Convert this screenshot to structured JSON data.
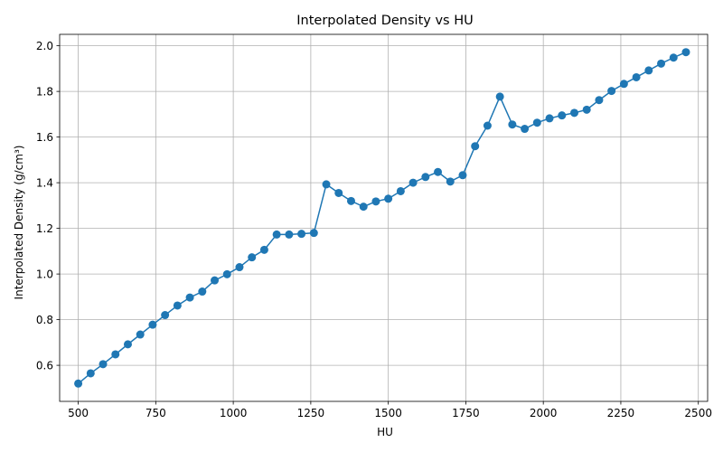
{
  "chart_data": {
    "type": "line",
    "title": "Interpolated Density vs HU",
    "xlabel": "HU",
    "ylabel": "Interpolated Density (g/cm³)",
    "xlim": [
      440,
      2530
    ],
    "ylim": [
      0.442,
      2.05
    ],
    "xticks": [
      500,
      750,
      1000,
      1250,
      1500,
      1750,
      2000,
      2250,
      2500
    ],
    "yticks": [
      0.6,
      0.8,
      1.0,
      1.2,
      1.4,
      1.6,
      1.8,
      2.0
    ],
    "xtick_labels": [
      "500",
      "750",
      "1000",
      "1250",
      "1500",
      "1750",
      "2000",
      "2250",
      "2500"
    ],
    "ytick_labels": [
      "0.6",
      "0.8",
      "1.0",
      "1.2",
      "1.4",
      "1.6",
      "1.8",
      "2.0"
    ],
    "grid": true,
    "color": "#1f77b4",
    "marker": "circle",
    "series": [
      {
        "x": [
          500,
          540,
          580,
          620,
          660,
          700,
          740,
          780,
          820,
          860,
          900,
          940,
          980,
          1020,
          1060,
          1100,
          1140,
          1180,
          1220,
          1260,
          1300,
          1340,
          1380,
          1420,
          1460,
          1500,
          1540,
          1580,
          1620,
          1660,
          1700,
          1740,
          1780,
          1820,
          1860,
          1900,
          1940,
          1980,
          2020,
          2060,
          2100,
          2140,
          2180,
          2220,
          2260,
          2300,
          2340,
          2380,
          2420,
          2460
        ],
        "y": [
          0.52,
          0.565,
          0.605,
          0.648,
          0.692,
          0.735,
          0.778,
          0.82,
          0.862,
          0.897,
          0.923,
          0.972,
          0.999,
          1.03,
          1.073,
          1.106,
          1.173,
          1.173,
          1.176,
          1.18,
          1.393,
          1.355,
          1.32,
          1.295,
          1.318,
          1.33,
          1.363,
          1.4,
          1.425,
          1.447,
          1.405,
          1.433,
          1.56,
          1.65,
          1.777,
          1.655,
          1.636,
          1.663,
          1.682,
          1.695,
          1.706,
          1.72,
          1.762,
          1.802,
          1.833,
          1.862,
          1.892,
          1.922,
          1.948,
          1.972
        ]
      }
    ]
  }
}
